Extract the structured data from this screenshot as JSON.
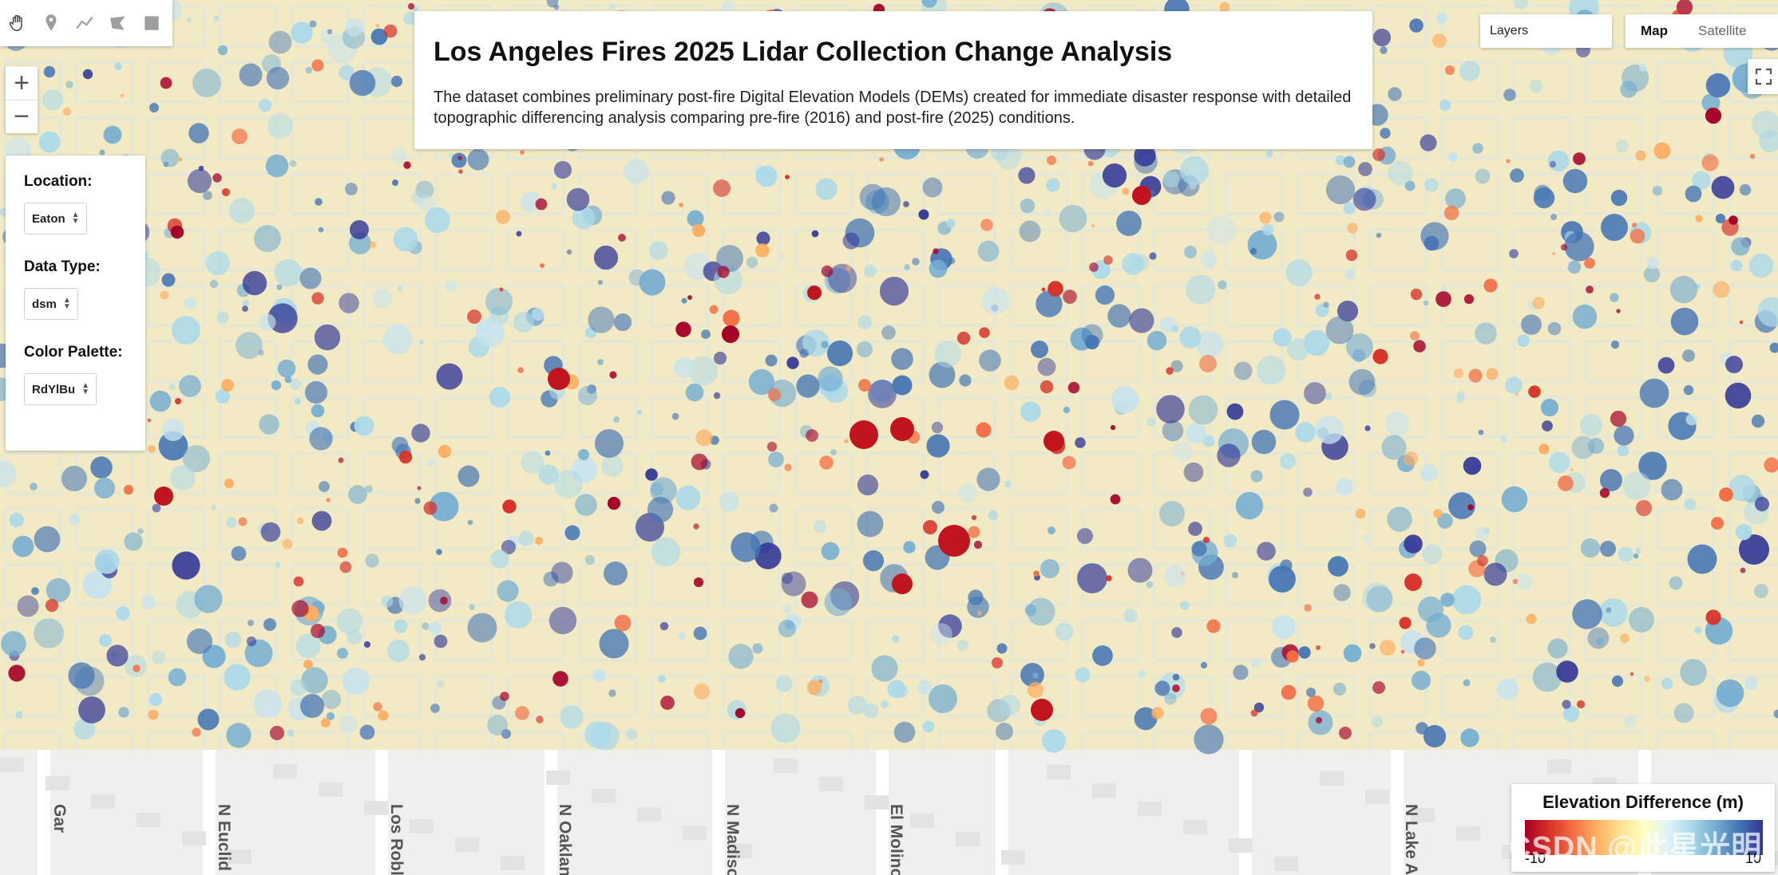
{
  "toolbar": {
    "tools": [
      {
        "name": "pan-hand-icon"
      },
      {
        "name": "point-marker-icon"
      },
      {
        "name": "line-draw-icon"
      },
      {
        "name": "polygon-draw-icon"
      },
      {
        "name": "rectangle-draw-icon"
      }
    ]
  },
  "zoom": {
    "in_label": "+",
    "out_label": "−"
  },
  "title_panel": {
    "title": "Los Angeles Fires 2025 Lidar Collection Change Analysis",
    "description": "The dataset combines preliminary post-fire Digital Elevation Models (DEMs) created for immediate disaster response with detailed topographic differencing analysis comparing pre-fire (2016) and post-fire (2025) conditions."
  },
  "controls": {
    "location_label": "Location:",
    "location_value": "Eaton",
    "data_type_label": "Data Type:",
    "data_type_value": "dsm",
    "palette_label": "Color Palette:",
    "palette_value": "RdYlBu"
  },
  "layers": {
    "label": "Layers"
  },
  "map_type": {
    "map_label": "Map",
    "satellite_label": "Satellite",
    "active": "Map"
  },
  "legend": {
    "title": "Elevation Difference (m)",
    "min_label": "-10",
    "max_label": "10",
    "colors": [
      "#a50026",
      "#d73027",
      "#f46d43",
      "#fdae61",
      "#fee090",
      "#ffffbf",
      "#e0f3f8",
      "#abd9e9",
      "#74add1",
      "#4575b4",
      "#313695"
    ]
  },
  "streets": [
    "Gar",
    "N Euclid A",
    "Los Robles",
    "N Oaklan",
    "N Madiso",
    "El Molino Ave",
    "N Lake A"
  ],
  "watermark": "CSDN @此星光明",
  "colors": {
    "map_base": "#f3ecc4",
    "basemap": "#eeeeec"
  }
}
